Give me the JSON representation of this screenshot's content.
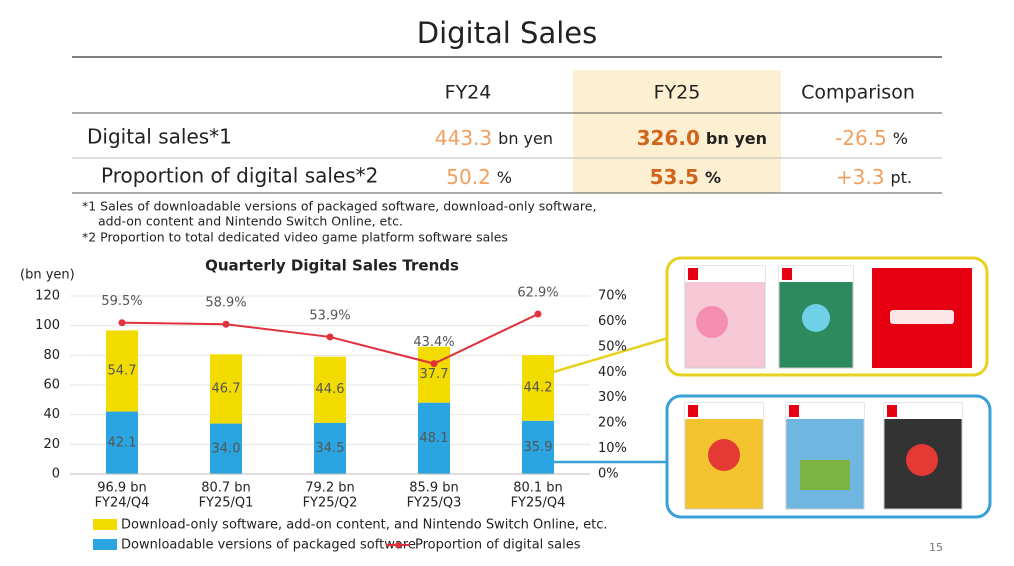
{
  "title": "Digital Sales",
  "table": {
    "columns": [
      "FY24",
      "FY25",
      "Comparison"
    ],
    "rows": [
      {
        "label": "Digital sales*1",
        "cells": [
          {
            "value": "443.3",
            "unit": "bn yen"
          },
          {
            "value": "326.0",
            "unit": "bn yen"
          },
          {
            "value": "-26.5",
            "unit": "%"
          }
        ]
      },
      {
        "label": "Proportion of digital sales*2",
        "cells": [
          {
            "value": "50.2",
            "unit": "%"
          },
          {
            "value": "53.5",
            "unit": "%"
          },
          {
            "value": "+3.3",
            "unit": "pt."
          }
        ]
      }
    ]
  },
  "footnotes": [
    "*1 Sales of downloadable versions of packaged software, download-only software,",
    "add-on content and Nintendo Switch Online, etc.",
    "*2 Proportion to total dedicated video game platform software sales"
  ],
  "chart_data": {
    "type": "bar",
    "title": "Quarterly Digital Sales Trends",
    "y_label": "(bn yen)",
    "categories": [
      "FY24/Q4",
      "FY25/Q1",
      "FY25/Q2",
      "FY25/Q3",
      "FY25/Q4"
    ],
    "totals": {
      "values": [
        96.9,
        80.7,
        79.2,
        85.9,
        80.1
      ],
      "value_labels": [
        "96.9 bn",
        "80.7 bn",
        "79.2 bn",
        "85.9 bn",
        "80.1 bn"
      ]
    },
    "series": [
      {
        "name": "Downloadable versions of packaged software",
        "color": "#2ba5e2",
        "values": [
          42.1,
          34.0,
          34.5,
          48.1,
          35.9
        ],
        "value_labels": [
          "42.1",
          "34.0",
          "34.5",
          "48.1",
          "35.9"
        ]
      },
      {
        "name": "Download-only software, add-on content, and Nintendo Switch Online, etc.",
        "color": "#f2dc00",
        "values": [
          54.7,
          46.7,
          44.6,
          37.7,
          44.2
        ]
      },
      {
        "name": "Proportion of digital sales",
        "type": "line",
        "axis": "y2",
        "color": "#e0313c",
        "values": [
          59.5,
          58.9,
          53.9,
          43.4,
          62.9
        ],
        "value_labels": [
          "59.5%",
          "58.9%",
          "53.9%",
          "43.4%",
          "62.9%"
        ]
      }
    ],
    "ylim": [
      0,
      120
    ],
    "yticks": [
      0,
      20,
      40,
      60,
      80,
      100,
      120
    ],
    "y2lim": [
      0,
      70
    ],
    "y2ticks": [
      {
        "value": 0,
        "label": "0%"
      },
      {
        "value": 10,
        "label": "10%"
      },
      {
        "value": 20,
        "label": "20%"
      },
      {
        "value": 30,
        "label": "30%"
      },
      {
        "value": 40,
        "label": "40%"
      },
      {
        "value": 50,
        "label": "50%"
      },
      {
        "value": 60,
        "label": "60%"
      },
      {
        "value": 70,
        "label": "70%"
      }
    ],
    "grid": true
  },
  "page_number": "15"
}
